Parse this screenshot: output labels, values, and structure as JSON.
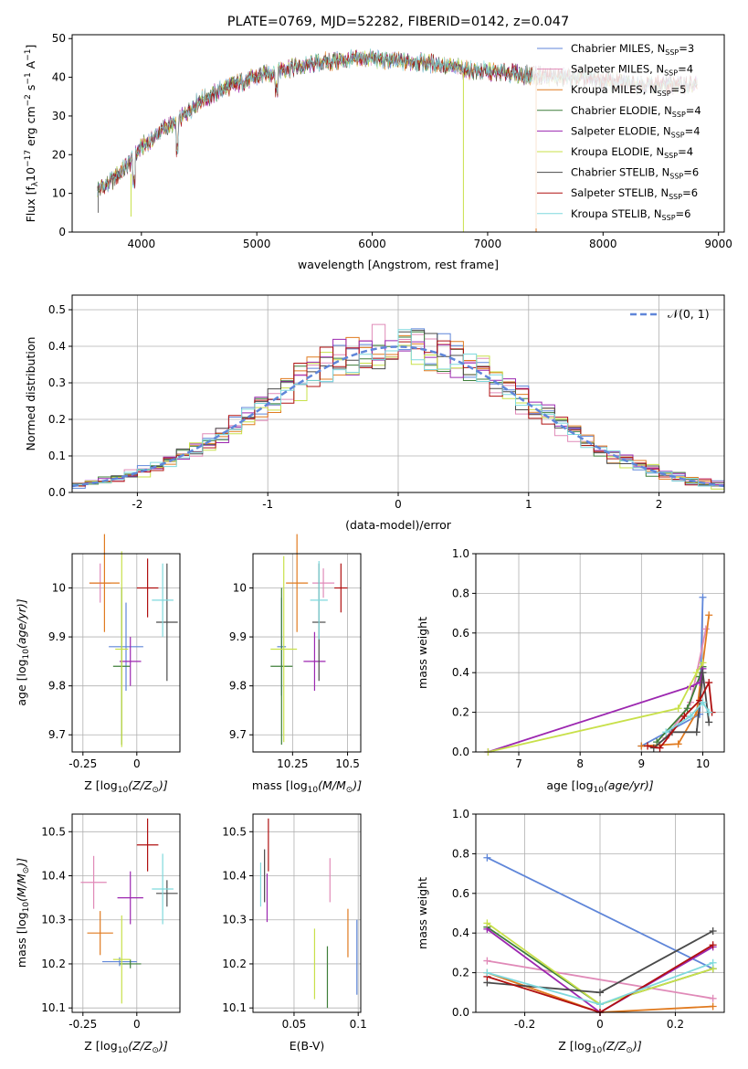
{
  "palette": {
    "Chabrier MILES": "#5f86d9",
    "Salpeter MILES": "#e08ab8",
    "Kroupa MILES": "#e07a1f",
    "Chabrier ELODIE": "#3f7f3a",
    "Salpeter ELODIE": "#9c27b0",
    "Kroupa ELODIE": "#c8e04a",
    "Chabrier STELIB": "#4a4a4a",
    "Salpeter STELIB": "#b01010",
    "Kroupa STELIB": "#7fd9dd"
  },
  "chart_data": [
    {
      "id": "spectrum",
      "type": "line",
      "title": "PLATE=0769, MJD=52282, FIBERID=0142, z=0.047",
      "xlabel": "wavelength [Angstrom, rest frame]",
      "ylabel": "Flux [f",
      "ylabel_sub": "λ",
      "ylabel_rest": "10",
      "ylabel_exp": "−17",
      "ylabel_tail": " erg cm",
      "xlim": [
        3400,
        9050
      ],
      "ylim": [
        0,
        51
      ],
      "xticks": [
        4000,
        5000,
        6000,
        7000,
        8000,
        9000
      ],
      "yticks": [
        0,
        10,
        20,
        30,
        40,
        50
      ],
      "continuum": [
        [
          3620,
          11
        ],
        [
          3700,
          12
        ],
        [
          3800,
          15
        ],
        [
          3900,
          18
        ],
        [
          4000,
          22
        ],
        [
          4100,
          24
        ],
        [
          4200,
          27
        ],
        [
          4300,
          28
        ],
        [
          4400,
          31
        ],
        [
          4500,
          34
        ],
        [
          4600,
          35
        ],
        [
          4700,
          37
        ],
        [
          4800,
          38
        ],
        [
          4900,
          39
        ],
        [
          5000,
          40
        ],
        [
          5200,
          42
        ],
        [
          5400,
          43
        ],
        [
          5600,
          44
        ],
        [
          5800,
          44.5
        ],
        [
          6000,
          45
        ],
        [
          6200,
          44
        ],
        [
          6400,
          44
        ],
        [
          6600,
          43
        ],
        [
          6800,
          42
        ],
        [
          7000,
          41.5
        ],
        [
          7200,
          41
        ],
        [
          7400,
          40.5
        ],
        [
          7600,
          40
        ],
        [
          7800,
          40
        ],
        [
          8000,
          39
        ],
        [
          8200,
          38.5
        ],
        [
          8400,
          38
        ],
        [
          8600,
          38
        ],
        [
          8800,
          38
        ]
      ],
      "legend": [
        {
          "label": "Chabrier MILES, N",
          "n": "3"
        },
        {
          "label": "Salpeter MILES, N",
          "n": "4"
        },
        {
          "label": "Kroupa MILES, N",
          "n": "5"
        },
        {
          "label": "Chabrier ELODIE, N",
          "n": "4"
        },
        {
          "label": "Salpeter ELODIE, N",
          "n": "4"
        },
        {
          "label": "Kroupa ELODIE, N",
          "n": "4"
        },
        {
          "label": "Chabrier STELIB, N",
          "n": "6"
        },
        {
          "label": "Salpeter STELIB, N",
          "n": "6"
        },
        {
          "label": "Kroupa STELIB, N",
          "n": "6"
        }
      ],
      "legend_sub": "SSP"
    },
    {
      "id": "residuals",
      "type": "histogram",
      "xlabel": "(data-model)/error",
      "ylabel": "Normed distribution",
      "xlim": [
        -2.5,
        2.5
      ],
      "ylim": [
        0,
        0.54
      ],
      "xticks": [
        -2,
        -1,
        0,
        1,
        2
      ],
      "yticks": [
        0.0,
        0.1,
        0.2,
        0.3,
        0.4,
        0.5
      ],
      "legend": "𝒩(0, 1)",
      "bin_width": 0.1
    },
    {
      "id": "age_vs_Z",
      "type": "scatter-errorbar",
      "xlabel": "Z [log",
      "xlabel_sub": "10",
      "xlabel_tail": "(Z/Z",
      "ylabel": "age  [log",
      "ylabel_sub": "10",
      "ylabel_tail": "(age/yr)]",
      "xlim": [
        -0.3,
        0.2
      ],
      "ylim": [
        9.665,
        10.07
      ],
      "xticks": [
        -0.25,
        0.0
      ],
      "yticks": [
        9.7,
        9.8,
        9.9,
        10.0
      ],
      "points": [
        {
          "name": "Chabrier MILES",
          "x": -0.05,
          "y": 9.88,
          "xe": 0.08,
          "ye": 0.09
        },
        {
          "name": "Salpeter MILES",
          "x": -0.17,
          "y": 10.01,
          "xe": 0.05,
          "ye": 0.04
        },
        {
          "name": "Kroupa MILES",
          "x": -0.15,
          "y": 10.01,
          "xe": 0.07,
          "ye": 0.1
        },
        {
          "name": "Chabrier ELODIE",
          "x": -0.07,
          "y": 9.84,
          "xe": 0.04,
          "ye": 0.16
        },
        {
          "name": "Salpeter ELODIE",
          "x": -0.03,
          "y": 9.85,
          "xe": 0.05,
          "ye": 0.05
        },
        {
          "name": "Kroupa ELODIE",
          "x": -0.07,
          "y": 9.875,
          "xe": 0.03,
          "ye": 0.2
        },
        {
          "name": "Chabrier STELIB",
          "x": 0.14,
          "y": 9.93,
          "xe": 0.05,
          "ye": 0.12
        },
        {
          "name": "Salpeter STELIB",
          "x": 0.05,
          "y": 10.0,
          "xe": 0.05,
          "ye": 0.06
        },
        {
          "name": "Kroupa STELIB",
          "x": 0.12,
          "y": 9.975,
          "xe": 0.05,
          "ye": 0.075
        }
      ]
    },
    {
      "id": "age_vs_mass",
      "type": "scatter-errorbar",
      "xlabel": "mass [log",
      "xlabel_sub": "10",
      "xlabel_tail": "(M/M",
      "xlim": [
        10.07,
        10.56
      ],
      "ylim": [
        9.665,
        10.07
      ],
      "xticks": [
        10.25,
        10.5
      ],
      "yticks": [
        9.7,
        9.8,
        9.9,
        10.0
      ],
      "points": [
        {
          "name": "Chabrier MILES",
          "x": 10.2,
          "y": 9.88,
          "xe": 0.02,
          "ye": 0.1
        },
        {
          "name": "Salpeter MILES",
          "x": 10.39,
          "y": 10.01,
          "xe": 0.05,
          "ye": 0.03
        },
        {
          "name": "Kroupa MILES",
          "x": 10.27,
          "y": 10.01,
          "xe": 0.05,
          "ye": 0.1
        },
        {
          "name": "Chabrier ELODIE",
          "x": 10.2,
          "y": 9.84,
          "xe": 0.05,
          "ye": 0.16
        },
        {
          "name": "Salpeter ELODIE",
          "x": 10.35,
          "y": 9.85,
          "xe": 0.05,
          "ye": 0.06
        },
        {
          "name": "Kroupa ELODIE",
          "x": 10.21,
          "y": 9.875,
          "xe": 0.06,
          "ye": 0.19
        },
        {
          "name": "Chabrier STELIB",
          "x": 10.37,
          "y": 9.93,
          "xe": 0.03,
          "ye": 0.12
        },
        {
          "name": "Salpeter STELIB",
          "x": 10.47,
          "y": 10.0,
          "xe": 0.03,
          "ye": 0.05
        },
        {
          "name": "Kroupa STELIB",
          "x": 10.37,
          "y": 9.975,
          "xe": 0.04,
          "ye": 0.08
        }
      ]
    },
    {
      "id": "weight_vs_age",
      "type": "line",
      "xlabel": "age  [log",
      "xlabel_sub": "10",
      "xlabel_tail": "(age/yr)]",
      "ylabel": "mass weight",
      "xlim": [
        6.3,
        10.35
      ],
      "ylim": [
        0,
        1
      ],
      "xticks": [
        7,
        8,
        9,
        10
      ],
      "yticks": [
        0.0,
        0.2,
        0.4,
        0.6,
        0.8,
        1.0
      ],
      "series": [
        {
          "name": "Chabrier MILES",
          "x": [
            9.0,
            9.95,
            10.0
          ],
          "y": [
            0.03,
            0.19,
            0.78
          ]
        },
        {
          "name": "Salpeter MILES",
          "x": [
            9.4,
            9.8,
            10.05
          ],
          "y": [
            0.07,
            0.25,
            0.62
          ]
        },
        {
          "name": "Kroupa MILES",
          "x": [
            9.0,
            9.6,
            9.9,
            10.1
          ],
          "y": [
            0.03,
            0.04,
            0.2,
            0.69
          ]
        },
        {
          "name": "Chabrier ELODIE",
          "x": [
            9.25,
            9.75,
            9.95,
            10.0
          ],
          "y": [
            0.05,
            0.22,
            0.38,
            0.43
          ]
        },
        {
          "name": "Salpeter ELODIE",
          "x": [
            6.5,
            9.8,
            9.95,
            10.0
          ],
          "y": [
            0.0,
            0.33,
            0.35,
            0.42
          ]
        },
        {
          "name": "Kroupa ELODIE",
          "x": [
            6.5,
            9.6,
            9.9,
            10.0
          ],
          "y": [
            0.0,
            0.22,
            0.4,
            0.45
          ]
        },
        {
          "name": "Chabrier STELIB",
          "x": [
            9.2,
            9.5,
            9.9,
            10.0,
            10.1
          ],
          "y": [
            0.02,
            0.1,
            0.1,
            0.4,
            0.15
          ]
        },
        {
          "name": "Salpeter STELIB",
          "x": [
            9.1,
            9.3,
            9.7,
            9.95,
            10.1,
            10.15
          ],
          "y": [
            0.03,
            0.02,
            0.18,
            0.26,
            0.35,
            0.2
          ]
        },
        {
          "name": "Kroupa STELIB",
          "x": [
            9.4,
            9.8,
            10.0,
            10.1
          ],
          "y": [
            0.1,
            0.18,
            0.25,
            0.2
          ]
        }
      ]
    },
    {
      "id": "mass_vs_Z",
      "type": "scatter-errorbar",
      "xlabel": "Z [log",
      "xlabel_sub": "10",
      "xlabel_tail": "(Z/Z",
      "ylabel": "mass [log",
      "ylabel_sub": "10",
      "ylabel_tail": "(M/M",
      "xlim": [
        -0.3,
        0.2
      ],
      "ylim": [
        10.09,
        10.54
      ],
      "xticks": [
        -0.25,
        0.0
      ],
      "yticks": [
        10.1,
        10.2,
        10.3,
        10.4,
        10.5
      ],
      "points": [
        {
          "name": "Chabrier MILES",
          "x": -0.08,
          "y": 10.205,
          "xe": 0.08,
          "ye": 0.01
        },
        {
          "name": "Salpeter MILES",
          "x": -0.2,
          "y": 10.385,
          "xe": 0.06,
          "ye": 0.06
        },
        {
          "name": "Kroupa MILES",
          "x": -0.17,
          "y": 10.27,
          "xe": 0.06,
          "ye": 0.05
        },
        {
          "name": "Chabrier ELODIE",
          "x": -0.03,
          "y": 10.2,
          "xe": 0.05,
          "ye": 0.01
        },
        {
          "name": "Salpeter ELODIE",
          "x": -0.03,
          "y": 10.35,
          "xe": 0.06,
          "ye": 0.06
        },
        {
          "name": "Kroupa ELODIE",
          "x": -0.07,
          "y": 10.21,
          "xe": 0.04,
          "ye": 0.1
        },
        {
          "name": "Chabrier STELIB",
          "x": 0.14,
          "y": 10.36,
          "xe": 0.05,
          "ye": 0.03
        },
        {
          "name": "Salpeter STELIB",
          "x": 0.05,
          "y": 10.47,
          "xe": 0.05,
          "ye": 0.06
        },
        {
          "name": "Kroupa STELIB",
          "x": 0.12,
          "y": 10.37,
          "xe": 0.05,
          "ye": 0.08
        }
      ]
    },
    {
      "id": "mass_vs_ebv",
      "type": "scatter-errorbar",
      "xlabel": "E(B-V)",
      "xlim": [
        0.018,
        0.102
      ],
      "ylim": [
        10.09,
        10.54
      ],
      "xticks": [
        0.05,
        0.1
      ],
      "yticks": [
        10.1,
        10.2,
        10.3,
        10.4,
        10.5
      ],
      "points": [
        {
          "name": "Chabrier MILES",
          "x": 0.099,
          "y": 10.215,
          "xe": 0.0,
          "ye": 0.085
        },
        {
          "name": "Salpeter MILES",
          "x": 0.078,
          "y": 10.39,
          "xe": 0.0,
          "ye": 0.05
        },
        {
          "name": "Kroupa MILES",
          "x": 0.092,
          "y": 10.27,
          "xe": 0.0,
          "ye": 0.055
        },
        {
          "name": "Chabrier ELODIE",
          "x": 0.076,
          "y": 10.17,
          "xe": 0.0,
          "ye": 0.07
        },
        {
          "name": "Salpeter ELODIE",
          "x": 0.029,
          "y": 10.35,
          "xe": 0.0,
          "ye": 0.055
        },
        {
          "name": "Kroupa ELODIE",
          "x": 0.066,
          "y": 10.2,
          "xe": 0.0,
          "ye": 0.08
        },
        {
          "name": "Chabrier STELIB",
          "x": 0.027,
          "y": 10.4,
          "xe": 0.0,
          "ye": 0.06
        },
        {
          "name": "Salpeter STELIB",
          "x": 0.03,
          "y": 10.47,
          "xe": 0.0,
          "ye": 0.06
        },
        {
          "name": "Kroupa STELIB",
          "x": 0.024,
          "y": 10.38,
          "xe": 0.0,
          "ye": 0.05
        }
      ]
    },
    {
      "id": "weight_vs_Z",
      "type": "line",
      "xlabel": "Z [log",
      "xlabel_sub": "10",
      "xlabel_tail": "(Z/Z",
      "ylabel": "mass weight",
      "xlim": [
        -0.33,
        0.33
      ],
      "ylim": [
        0,
        1
      ],
      "xticks": [
        -0.2,
        0.0,
        0.2
      ],
      "yticks": [
        0.0,
        0.2,
        0.4,
        0.6,
        0.8,
        1.0
      ],
      "series": [
        {
          "name": "Chabrier MILES",
          "x": [
            -0.3,
            0.3
          ],
          "y": [
            0.78,
            0.22
          ]
        },
        {
          "name": "Salpeter MILES",
          "x": [
            -0.3,
            0.3
          ],
          "y": [
            0.26,
            0.07
          ]
        },
        {
          "name": "Kroupa MILES",
          "x": [
            -0.3,
            0.0,
            0.3
          ],
          "y": [
            0.2,
            0.0,
            0.03
          ]
        },
        {
          "name": "Chabrier ELODIE",
          "x": [
            -0.3,
            0.0,
            0.3
          ],
          "y": [
            0.43,
            0.04,
            0.22
          ]
        },
        {
          "name": "Salpeter ELODIE",
          "x": [
            -0.3,
            0.0,
            0.3
          ],
          "y": [
            0.42,
            0.0,
            0.33
          ]
        },
        {
          "name": "Kroupa ELODIE",
          "x": [
            -0.3,
            0.0,
            0.3
          ],
          "y": [
            0.45,
            0.04,
            0.22
          ]
        },
        {
          "name": "Chabrier STELIB",
          "x": [
            -0.3,
            0.0,
            0.3
          ],
          "y": [
            0.15,
            0.1,
            0.41
          ]
        },
        {
          "name": "Salpeter STELIB",
          "x": [
            -0.3,
            0.0,
            0.3
          ],
          "y": [
            0.18,
            0.0,
            0.34
          ]
        },
        {
          "name": "Kroupa STELIB",
          "x": [
            -0.3,
            0.0,
            0.3
          ],
          "y": [
            0.2,
            0.04,
            0.25
          ]
        }
      ]
    }
  ]
}
